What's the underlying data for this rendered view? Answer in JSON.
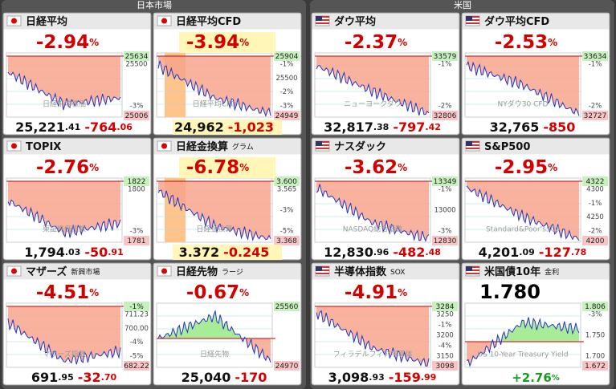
{
  "sections": [
    {
      "title": "日本市場",
      "tiles": [
        {
          "name": "日経平均",
          "pct": "-2.94",
          "pct_unit": "%",
          "price": "25,221",
          "price_dec": ".41",
          "change": "-764",
          "change_dec": ".06",
          "high": "25634",
          "scale": [
            "25500",
            "-3%"
          ],
          "low": "25006",
          "watermark": "日経平均株価"
        },
        {
          "name": "日経平均CFD",
          "pct": "-3.94",
          "pct_unit": "%",
          "price": "24,962",
          "change": "-1,023",
          "high": "25904",
          "scale": [
            "-1%",
            "25500",
            "-2%",
            "-3%"
          ],
          "low": "24949",
          "watermark": "日経平均CFD"
        },
        {
          "name": "TOPIX",
          "pct": "-2.76",
          "pct_unit": "%",
          "price": "1,794",
          "price_dec": ".03",
          "change": "-50",
          "change_dec": ".91",
          "high": "1822",
          "scale": [
            "1800",
            "-3%"
          ],
          "low": "1781",
          "watermark": "東証株価指数"
        },
        {
          "name": "日経金換算",
          "sub": "グラム",
          "pct": "-6.78",
          "pct_unit": "%",
          "price": "3.372",
          "change": "-0.245",
          "high": "3.600",
          "scale": [
            "3.565",
            "-3%",
            "-5%"
          ],
          "low": "3.368",
          "watermark": "日経金換算"
        },
        {
          "name": "マザーズ",
          "sub": "新興市場",
          "pct": "-4.51",
          "pct_unit": "%",
          "price": "691",
          "price_dec": ".95",
          "change": "-32",
          "change_dec": ".70",
          "high": "-1%",
          "scale": [
            "711.23",
            "700.00",
            "-4%",
            "-5%"
          ],
          "low": "682.22",
          "watermark": "マザーズ指数"
        },
        {
          "name": "日経先物",
          "sub": "ラージ",
          "pct": "-0.67",
          "pct_unit": "%",
          "price": "25,040",
          "change": "-170",
          "high": "25560",
          "scale": [],
          "low": "24970",
          "watermark": "日経先物"
        }
      ]
    },
    {
      "title": "米国",
      "tiles": [
        {
          "name": "ダウ平均",
          "pct": "-2.37",
          "pct_unit": "%",
          "price": "32,817",
          "price_dec": ".38",
          "change": "-797",
          "change_dec": ".42",
          "high": "33579",
          "scale": [
            "-1%",
            "-2%"
          ],
          "low": "32806",
          "watermark": "ニューヨークダウ"
        },
        {
          "name": "ダウ平均CFD",
          "pct": "-2.53",
          "pct_unit": "%",
          "price": "32,765",
          "change": "-850",
          "high": "33634",
          "scale": [
            "-1%",
            "-2%"
          ],
          "low": "32727",
          "watermark": "NYダウ30 CFD"
        },
        {
          "name": "ナスダック",
          "pct": "-3.62",
          "pct_unit": "%",
          "price": "12,830",
          "price_dec": ".96",
          "change": "-482",
          "change_dec": ".48",
          "high": "13349",
          "scale": [
            "-1%",
            "13000",
            "-3%"
          ],
          "low": "12830",
          "watermark": "NASDAQ総合指数"
        },
        {
          "name": "S&P500",
          "pct": "-2.95",
          "pct_unit": "%",
          "price": "4,201",
          "price_dec": ".09",
          "change": "-127",
          "change_dec": ".78",
          "high": "4322",
          "scale": [
            "4300",
            "-1%",
            "4250",
            "-2%"
          ],
          "low": "4200",
          "watermark": "Standard&Poor's500"
        },
        {
          "name": "半導体指数",
          "sub": "SOX",
          "pct": "-4.91",
          "pct_unit": "%",
          "price": "3,098",
          "price_dec": ".93",
          "change": "-159",
          "change_dec": ".99",
          "high": "3284",
          "scale": [
            "3250",
            "-1%",
            "3200",
            "-4%",
            "3150"
          ],
          "low": "3098",
          "watermark": "フィラデルフィア半導体"
        },
        {
          "name": "米国債10年",
          "sub": "金利",
          "value": "1.780",
          "pct": "+2.76",
          "pct_unit": "%",
          "high": "1.806",
          "scale": [
            "-3%",
            "1.750",
            "1.700"
          ],
          "low": "1.672",
          "watermark": "US 10-Year Treasury Yield"
        }
      ]
    }
  ]
}
